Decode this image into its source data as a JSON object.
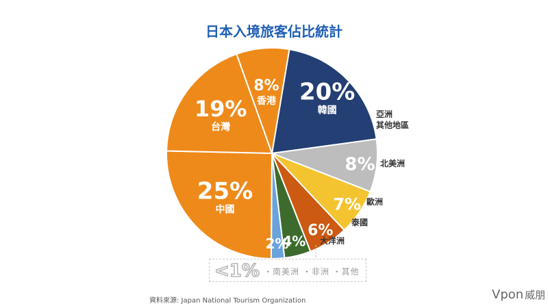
{
  "chart_data": {
    "type": "pie",
    "title": "日本入境旅客佔比統計",
    "slices": [
      {
        "name": "韓國",
        "value": 20,
        "label": "20%",
        "color": "#233f73"
      },
      {
        "name": "亞洲其他地區",
        "value": 8,
        "label": "8%",
        "color": "#bdbdbd"
      },
      {
        "name": "北美洲",
        "value": 7,
        "label": "7%",
        "color": "#f4c430"
      },
      {
        "name": "歐洲",
        "value": 6,
        "label": "6%",
        "color": "#cc5a12"
      },
      {
        "name": "泰國",
        "value": 4,
        "label": "4%",
        "color": "#3d6b2d"
      },
      {
        "name": "大洋洲",
        "value": 2,
        "label": "2%",
        "color": "#6aa3db"
      },
      {
        "name": "中國",
        "value": 25,
        "label": "25%",
        "color": "#ee8a1a"
      },
      {
        "name": "台灣",
        "value": 19,
        "label": "19%",
        "color": "#ee8a1a"
      },
      {
        "name": "香港",
        "value": 8,
        "label": "8%",
        "color": "#ee8a1a"
      }
    ],
    "other": {
      "label": "<1%",
      "regions": "・南美洲 ・非洲 ・其他"
    }
  },
  "source": "資料來源: Japan National Tourism Organization",
  "logo": {
    "brand": "Vpon",
    "zh": "威朋"
  }
}
